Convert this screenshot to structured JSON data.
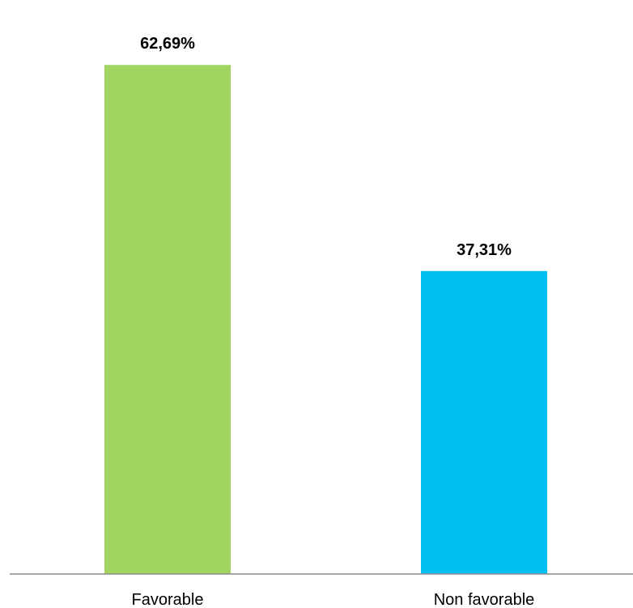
{
  "chart_data": {
    "type": "bar",
    "categories": [
      "Favorable",
      "Non favorable"
    ],
    "values": [
      62.69,
      37.31
    ],
    "value_labels": [
      "62,69%",
      "37,31%"
    ],
    "colors": [
      "#a2d462",
      "#00bff2"
    ],
    "axis_color": "#8c8c8c",
    "ylim": [
      0,
      70
    ],
    "grid": false,
    "legend": "none"
  }
}
